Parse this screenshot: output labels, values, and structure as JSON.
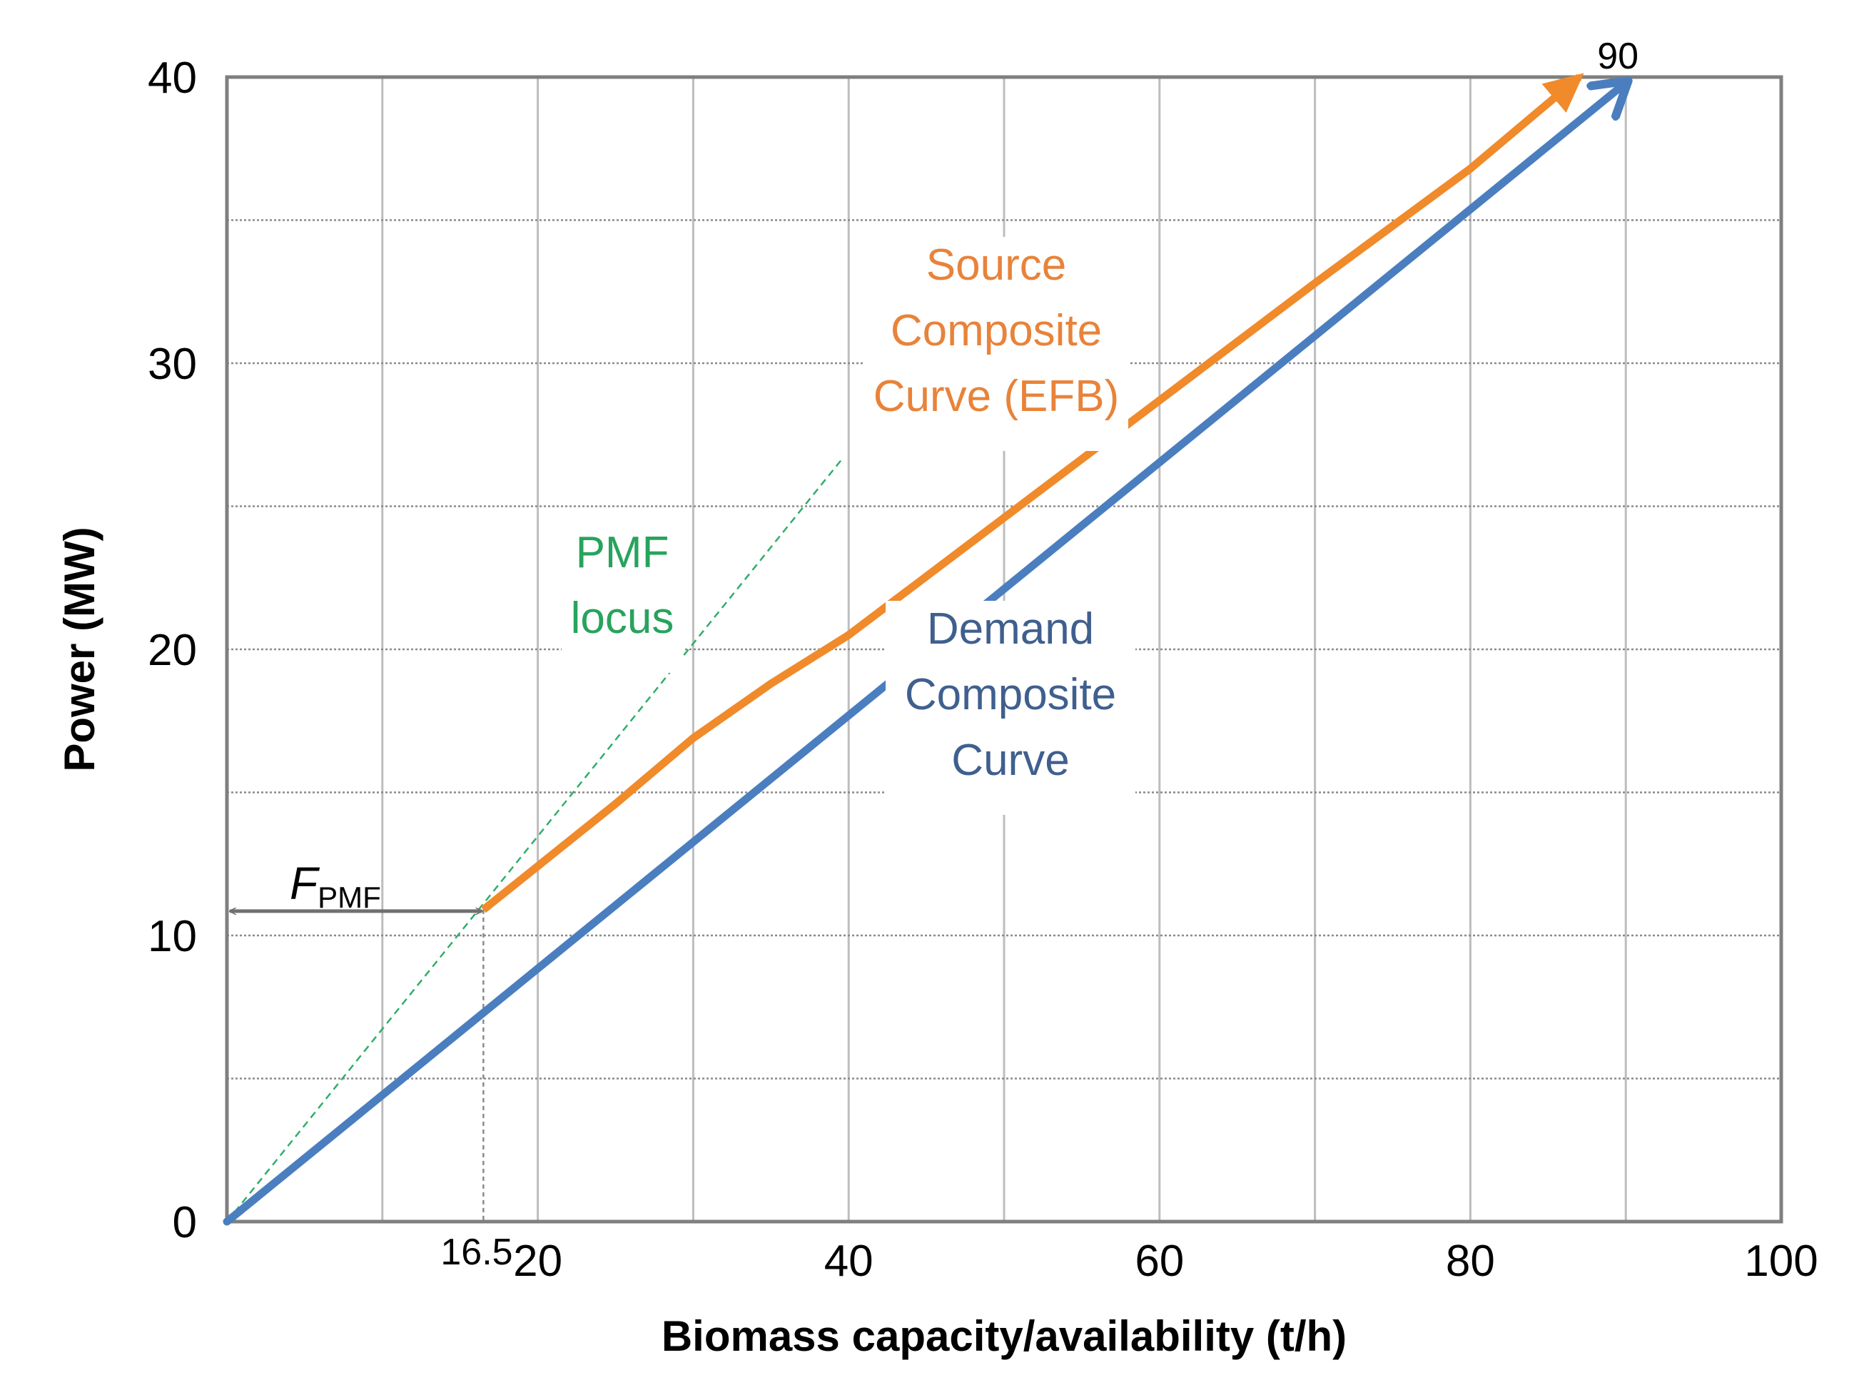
{
  "chart_data": {
    "type": "line",
    "title": "",
    "xlabel": "Biomass capacity/availability  (t/h)",
    "ylabel": "Power (MW)",
    "xlim": [
      0,
      100
    ],
    "ylim": [
      0,
      40
    ],
    "x_ticks": [
      20,
      40,
      60,
      80,
      100
    ],
    "y_ticks": [
      0,
      10,
      20,
      30,
      40
    ],
    "x_gridlines": [
      10,
      20,
      30,
      40,
      50,
      60,
      70,
      80,
      90
    ],
    "y_gridlines": [
      5,
      10,
      15,
      20,
      25,
      30,
      35
    ],
    "series": [
      {
        "name": "Demand Composite Curve",
        "color": "#4a7ebf",
        "x": [
          0,
          90
        ],
        "y": [
          0,
          39.8
        ]
      },
      {
        "name": "Source Composite Curve (EFB)",
        "color": "#f08a2a",
        "x": [
          16.5,
          25,
          30,
          35,
          40,
          50,
          60,
          70,
          80,
          87
        ],
        "y": [
          10.9,
          14.6,
          16.9,
          18.8,
          20.5,
          24.6,
          28.7,
          32.8,
          36.8,
          40.0
        ]
      },
      {
        "name": "PMF locus",
        "color": "#2fae6a",
        "style": "dashed",
        "x": [
          0,
          39.5
        ],
        "y": [
          0,
          26.6
        ]
      }
    ],
    "annotations": {
      "source_label": [
        "Source",
        "Composite",
        "Curve (EFB)"
      ],
      "demand_label": [
        "Demand",
        "Composite",
        "Curve"
      ],
      "pmf_label": [
        "PMF",
        "locus"
      ],
      "fpmf_main": "F",
      "fpmf_sub": "PMF",
      "pmf_x_value": 16.5,
      "pmf_x_label": "16.5",
      "pmf_y_value": 10.9,
      "end_x_value": 90,
      "end_label": "90"
    }
  }
}
